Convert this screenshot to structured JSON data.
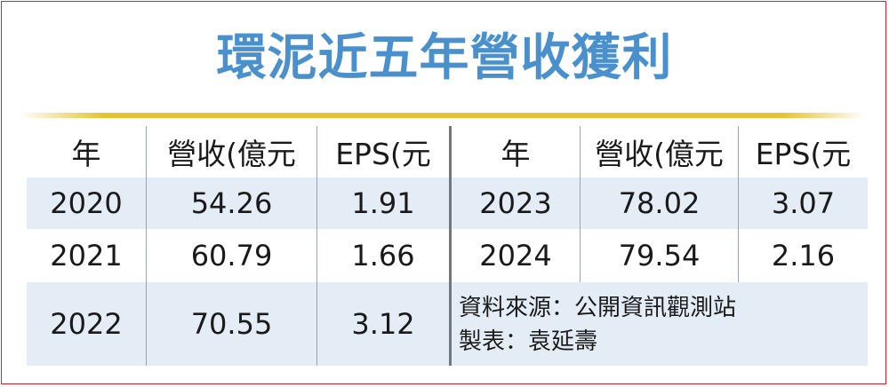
{
  "title": "環泥近五年營收獲利",
  "table": {
    "left_headers": [
      "年",
      "營收(億元",
      "EPS(元"
    ],
    "right_headers": [
      "年",
      "營收(億元",
      "EPS(元"
    ],
    "left_rows": [
      {
        "year": "2020",
        "revenue": "54.26",
        "eps": "1.91"
      },
      {
        "year": "2021",
        "revenue": "60.79",
        "eps": "1.66"
      },
      {
        "year": "2022",
        "revenue": "70.55",
        "eps": "3.12"
      }
    ],
    "right_rows": [
      {
        "year": "2023",
        "revenue": "78.02",
        "eps": "3.07"
      },
      {
        "year": "2024",
        "revenue": "79.54",
        "eps": "2.16"
      }
    ]
  },
  "source": "資料來源：公開資訊觀測站",
  "credit": "製表：袁延壽"
}
